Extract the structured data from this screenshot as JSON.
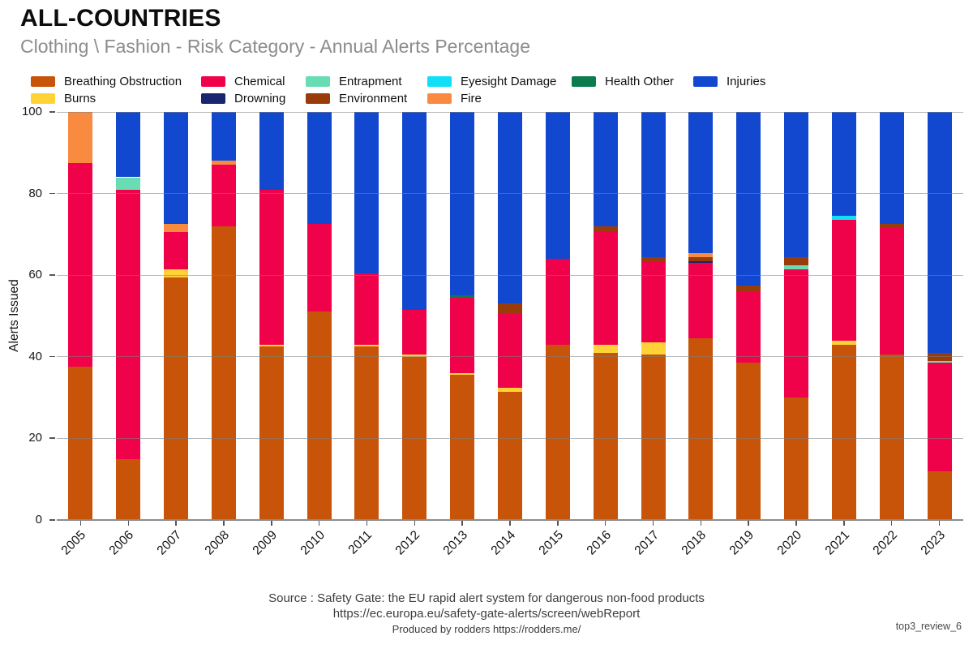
{
  "header": {
    "title": "ALL-COUNTRIES",
    "subtitle": "Clothing \\ Fashion - Risk Category - Annual Alerts Percentage"
  },
  "chart_data": {
    "type": "bar",
    "stacked": true,
    "title": "ALL-COUNTRIES",
    "subtitle": "Clothing \\ Fashion - Risk Category - Annual Alerts Percentage",
    "xlabel": "",
    "ylabel": "Alerts Issued",
    "ylim": [
      0,
      100
    ],
    "yticks": [
      0,
      20,
      40,
      60,
      80,
      100
    ],
    "grid": true,
    "legend_position": "top",
    "categories": [
      "2005",
      "2006",
      "2007",
      "2008",
      "2009",
      "2010",
      "2011",
      "2012",
      "2013",
      "2014",
      "2015",
      "2016",
      "2017",
      "2018",
      "2019",
      "2020",
      "2021",
      "2022",
      "2023"
    ],
    "series": [
      {
        "name": "Breathing Obstruction",
        "color": "#C8540A",
        "values": [
          37.5,
          15,
          59.5,
          72,
          42.5,
          51,
          42.5,
          40,
          35.5,
          31.5,
          43,
          41,
          40.5,
          44.5,
          38.5,
          30,
          43,
          40.5,
          12
        ]
      },
      {
        "name": "Burns",
        "color": "#FFD337",
        "values": [
          0,
          0,
          2,
          0,
          0.5,
          0,
          0.5,
          0.5,
          0.5,
          1,
          0,
          2,
          3,
          0,
          0,
          0,
          1,
          0,
          0
        ]
      },
      {
        "name": "Chemical",
        "color": "#F0024B",
        "values": [
          50,
          66,
          9,
          15,
          38,
          21.5,
          17.5,
          11,
          18.5,
          18,
          21,
          27.5,
          20,
          18.5,
          17.5,
          31.5,
          29.5,
          31,
          26.5
        ]
      },
      {
        "name": "Drowning",
        "color": "#19256E",
        "values": [
          0,
          0,
          0,
          0,
          0,
          0,
          0,
          0,
          0,
          0,
          0,
          0,
          0,
          0.5,
          0,
          0,
          0,
          0,
          0
        ]
      },
      {
        "name": "Entrapment",
        "color": "#68DCB2",
        "values": [
          0,
          3,
          0,
          0,
          0,
          0,
          0,
          0,
          0,
          0,
          0,
          0,
          0,
          0,
          0,
          1,
          0,
          0,
          0.5
        ]
      },
      {
        "name": "Environment",
        "color": "#9A3B0A",
        "values": [
          0,
          0,
          0,
          0,
          0,
          0,
          0,
          0,
          0,
          2.5,
          0,
          1.5,
          1,
          1,
          1.5,
          2,
          0,
          1,
          2
        ]
      },
      {
        "name": "Eyesight Damage",
        "color": "#11DFF7",
        "values": [
          0,
          0,
          0,
          0,
          0,
          0,
          0,
          0,
          0,
          0,
          0,
          0,
          0,
          0,
          0,
          0,
          1,
          0,
          0
        ]
      },
      {
        "name": "Fire",
        "color": "#F98B41",
        "values": [
          12.5,
          0,
          2,
          1,
          0,
          0,
          0,
          0,
          0,
          0,
          0,
          0,
          0,
          1,
          0,
          0,
          0,
          0,
          0
        ]
      },
      {
        "name": "Health Other",
        "color": "#0C7C4F",
        "values": [
          0,
          0,
          0,
          0,
          0,
          0,
          0,
          0,
          0.5,
          0,
          0,
          0,
          0,
          0,
          0,
          0,
          0,
          0,
          0
        ]
      },
      {
        "name": "Injuries",
        "color": "#1247CF",
        "values": [
          0,
          16,
          27.5,
          12,
          19,
          27.5,
          39.5,
          48.5,
          45,
          47,
          36,
          28,
          35.5,
          34.5,
          42.5,
          35.5,
          25.5,
          27.5,
          59
        ]
      }
    ]
  },
  "footer": {
    "line1": "Source : Safety Gate: the EU rapid alert system for dangerous non-food products",
    "line2": "https://ec.europa.eu/safety-gate-alerts/screen/webReport",
    "line3": "Produced by rodders https://rodders.me/",
    "watermark": "top3_review_6"
  }
}
